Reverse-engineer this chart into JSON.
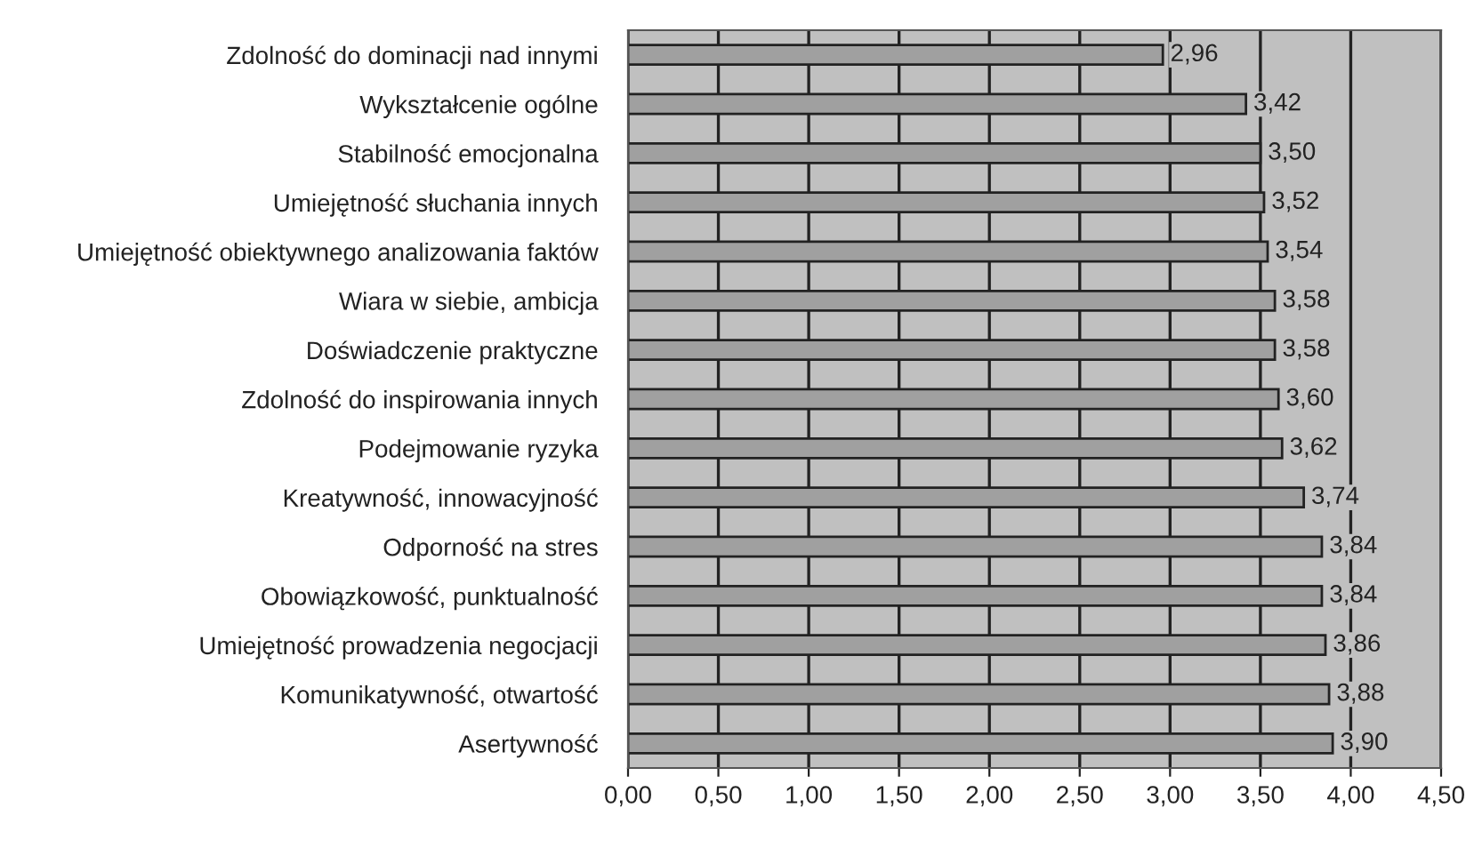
{
  "chart_data": {
    "type": "bar",
    "orientation": "horizontal",
    "categories": [
      "Zdolność do dominacji nad innymi",
      "Wykształcenie ogólne",
      "Stabilność emocjonalna",
      "Umiejętność słuchania innych",
      "Umiejętność obiektywnego analizowania faktów",
      "Wiara w siebie, ambicja",
      "Doświadczenie praktyczne",
      "Zdolność do inspirowania innych",
      "Podejmowanie ryzyka",
      "Kreatywność, innowacyjność",
      "Odporność na stres",
      "Obowiązkowość, punktualność",
      "Umiejętność prowadzenia negocjacji",
      "Komunikatywność, otwartość",
      "Asertywność"
    ],
    "values": [
      2.96,
      3.42,
      3.5,
      3.52,
      3.54,
      3.58,
      3.58,
      3.6,
      3.62,
      3.74,
      3.84,
      3.84,
      3.86,
      3.88,
      3.9
    ],
    "value_labels": [
      "2,96",
      "3,42",
      "3,50",
      "3,52",
      "3,54",
      "3,58",
      "3,58",
      "3,60",
      "3,62",
      "3,74",
      "3,84",
      "3,84",
      "3,86",
      "3,88",
      "3,90"
    ],
    "color": "#a0a0a0",
    "xlim": [
      0,
      4.5
    ],
    "xticks": [
      {
        "value": 0,
        "label": "0,00"
      },
      {
        "value": 0.5,
        "label": "0,50"
      },
      {
        "value": 1,
        "label": "1,00"
      },
      {
        "value": 1.5,
        "label": "1,50"
      },
      {
        "value": 2,
        "label": "2,00"
      },
      {
        "value": 2.5,
        "label": "2,50"
      },
      {
        "value": 3,
        "label": "3,00"
      },
      {
        "value": 3.5,
        "label": "3,50"
      },
      {
        "value": 4,
        "label": "4,00"
      },
      {
        "value": 4.5,
        "label": "4,50"
      }
    ],
    "grid": "x",
    "legend": false
  }
}
